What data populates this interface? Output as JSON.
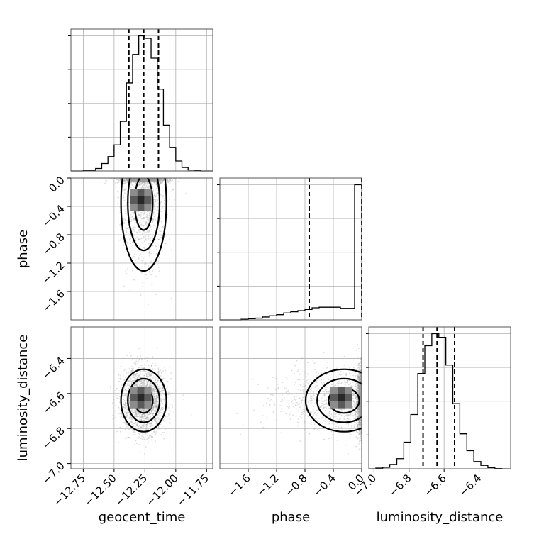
{
  "chart_data": {
    "type": "corner",
    "parameters": [
      {
        "name": "geocent_time",
        "range": [
          -12.85,
          -11.7
        ],
        "ticks": [
          -12.75,
          -12.5,
          -12.25,
          -12.0,
          -11.75
        ],
        "tick_labels": [
          "−12.75",
          "−12.50",
          "−12.25",
          "−12.00",
          "−11.75"
        ],
        "quantiles": [
          -12.38,
          -12.26,
          -12.14
        ],
        "mean": -12.26,
        "sd": 0.09
      },
      {
        "name": "phase",
        "range": [
          -2.0,
          0.0
        ],
        "ticks": [
          -1.6,
          -1.2,
          -0.8,
          -0.4,
          0.0
        ],
        "tick_labels": [
          "−1.6",
          "−1.2",
          "−0.8",
          "−0.4",
          "0.0"
        ],
        "quantiles": [
          -0.74,
          -0.0,
          0.0
        ],
        "mean": -0.3,
        "sd": 0.35
      },
      {
        "name": "luminosity_distance",
        "range": [
          -7.03,
          -6.22
        ],
        "ticks": [
          -7.0,
          -6.8,
          -6.6,
          -6.4
        ],
        "tick_labels": [
          "−7.0",
          "−6.8",
          "−6.6",
          "−6.4"
        ],
        "quantiles": [
          -6.72,
          -6.64,
          -6.54
        ],
        "mean": -6.64,
        "sd": 0.09
      }
    ],
    "histograms": [
      {
        "param": "geocent_time",
        "bin_edges": [
          -12.85,
          -12.8,
          -12.75,
          -12.7,
          -12.65,
          -12.6,
          -12.55,
          -12.5,
          -12.45,
          -12.4,
          -12.35,
          -12.3,
          -12.25,
          -12.2,
          -12.15,
          -12.1,
          -12.05,
          -12.0,
          -11.95,
          -11.9,
          -11.85,
          -11.8,
          -11.75,
          -11.7
        ],
        "counts": [
          0,
          0,
          1,
          3,
          10,
          30,
          58,
          105,
          200,
          355,
          470,
          545,
          535,
          455,
          330,
          185,
          95,
          40,
          14,
          4,
          1,
          0,
          0
        ]
      },
      {
        "param": "phase",
        "bin_edges": [
          -2.0,
          -1.9,
          -1.8,
          -1.7,
          -1.6,
          -1.5,
          -1.4,
          -1.3,
          -1.2,
          -1.1,
          -1.0,
          -0.9,
          -0.8,
          -0.7,
          -0.6,
          -0.5,
          -0.4,
          -0.3,
          -0.2,
          -0.1,
          0.0
        ],
        "counts": [
          0,
          0,
          0,
          1,
          2,
          3,
          5,
          7,
          9,
          12,
          14,
          16,
          18,
          21,
          22,
          22,
          22,
          20,
          20,
          235
        ]
      },
      {
        "param": "luminosity_distance",
        "bin_edges": [
          -7.03,
          -6.99,
          -6.95,
          -6.91,
          -6.87,
          -6.83,
          -6.79,
          -6.75,
          -6.71,
          -6.67,
          -6.63,
          -6.59,
          -6.55,
          -6.51,
          -6.47,
          -6.43,
          -6.39,
          -6.35,
          -6.31,
          -6.27,
          -6.23
        ],
        "counts": [
          0,
          3,
          6,
          18,
          42,
          110,
          225,
          395,
          510,
          560,
          545,
          430,
          270,
          145,
          75,
          30,
          14,
          5,
          1,
          0
        ]
      }
    ],
    "pairs": [
      {
        "x": "geocent_time",
        "y": "phase",
        "contour_levels": 3
      },
      {
        "x": "geocent_time",
        "y": "luminosity_distance",
        "contour_levels": 3
      },
      {
        "x": "phase",
        "y": "luminosity_distance",
        "contour_levels": 3
      }
    ],
    "grid": true,
    "colors": {
      "points": "#9a9a9a",
      "lines": "#000000"
    }
  }
}
